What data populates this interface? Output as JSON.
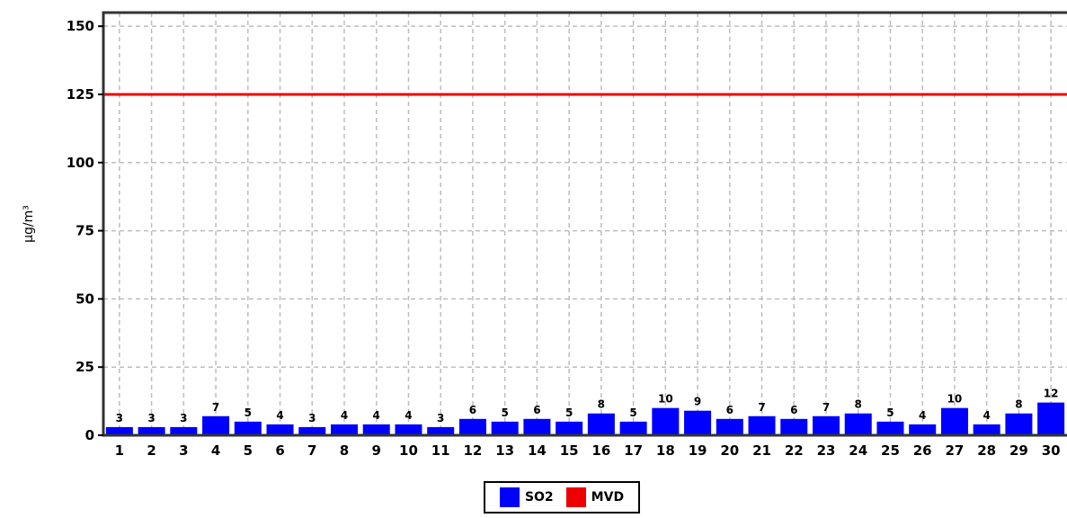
{
  "chart_data": {
    "type": "bar",
    "ylabel": "µg/m³",
    "ylim": [
      0,
      155
    ],
    "yticks": [
      0,
      25,
      50,
      75,
      100,
      125,
      150
    ],
    "grid": true,
    "legend_position": "bottom-center",
    "categories": [
      "1",
      "2",
      "3",
      "4",
      "5",
      "6",
      "7",
      "8",
      "9",
      "10",
      "11",
      "12",
      "13",
      "14",
      "15",
      "16",
      "17",
      "18",
      "19",
      "20",
      "21",
      "22",
      "23",
      "24",
      "25",
      "26",
      "27",
      "28",
      "29",
      "30"
    ],
    "series": [
      {
        "name": "SO2",
        "color": "#0000ff",
        "values": [
          3,
          3,
          3,
          7,
          5,
          4,
          3,
          4,
          4,
          4,
          3,
          6,
          5,
          6,
          5,
          8,
          5,
          10,
          9,
          6,
          7,
          6,
          7,
          8,
          5,
          4,
          10,
          4,
          8,
          12
        ]
      }
    ],
    "reference_lines": [
      {
        "name": "MVD",
        "value": 125,
        "color": "#ee0000"
      }
    ]
  },
  "legend": [
    {
      "label": "SO2",
      "color": "#0000ff"
    },
    {
      "label": "MVD",
      "color": "#ee0000"
    }
  ]
}
